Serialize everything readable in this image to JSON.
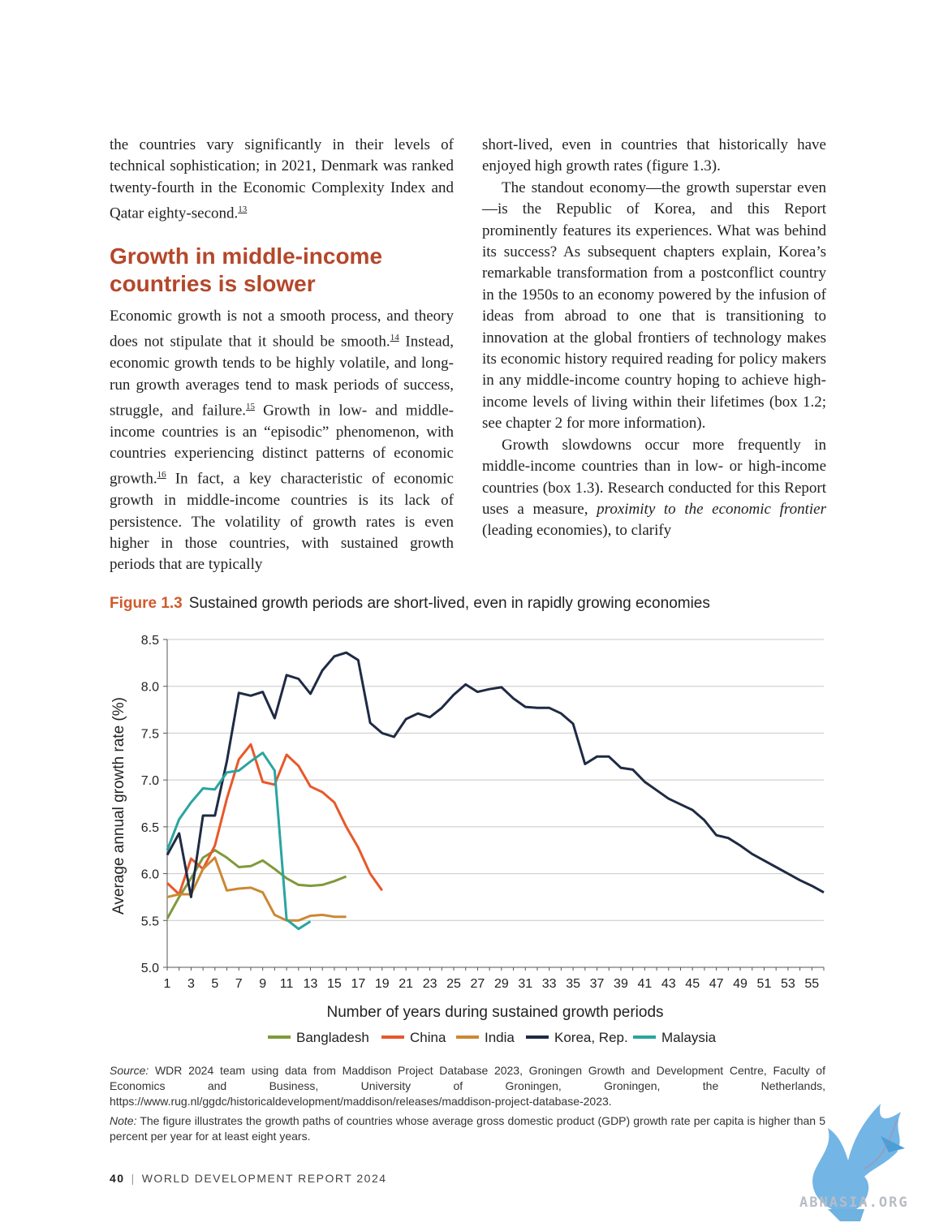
{
  "left_column": {
    "p1": "the countries vary significantly in their levels of technical sophistication; in 2021, Denmark was ranked twenty-fourth in the Economic Complexity Index and Qatar eighty-second.",
    "p1_note": "13",
    "heading": "Growth in middle-income countries is slower",
    "p2_a": "Economic growth is not a smooth process, and theory does not stipulate that it should be smooth.",
    "p2_n1": "14",
    "p2_b": " Instead, economic growth tends to be highly volatile, and long-run growth averages tend to mask periods of success, struggle, and failure.",
    "p2_n2": "15",
    "p2_c": " Growth in low- and middle-income countries is an “episodic” phenomenon, with countries experiencing distinct patterns of economic growth.",
    "p2_n3": "16",
    "p2_d": " In fact, a key characteristic of economic growth in middle-income countries is its lack of persistence. The volatility of growth rates is even higher in those countries, with sustained growth periods that are typically"
  },
  "right_column": {
    "p1": "short-lived, even in countries that historically have enjoyed high growth rates (figure 1.3).",
    "p2": "The standout economy—the growth superstar even—is the Republic of Korea, and this Report prominently features its experiences. What was behind its success? As subsequent chapters explain, Korea’s remarkable transformation from a postconflict country in the 1950s to an economy powered by the infusion of ideas from abroad to one that is transitioning to innovation at the global frontiers of technology makes its economic history required reading for policy makers in any middle-income country hoping to achieve high-income levels of living within their lifetimes (box 1.2; see chapter 2 for more information).",
    "p3_a": "Growth slowdowns occur more frequently in middle-income countries than in low- or high-income countries (box 1.3). Research conducted for this Report uses a measure, ",
    "p3_em": "proximity to the economic frontier",
    "p3_b": " (leading economies), to clarify"
  },
  "figure": {
    "number": "Figure 1.3",
    "title": "Sustained growth periods are short-lived, even in rapidly growing economies"
  },
  "chart_data": {
    "type": "line",
    "xlabel": "Number of years during sustained growth periods",
    "ylabel": "Average annual growth rate (%)",
    "xlim": [
      1,
      56
    ],
    "ylim": [
      5.0,
      8.5
    ],
    "x_ticks": [
      "1",
      "3",
      "5",
      "7",
      "9",
      "11",
      "13",
      "15",
      "17",
      "19",
      "21",
      "23",
      "25",
      "27",
      "29",
      "31",
      "33",
      "35",
      "37",
      "39",
      "41",
      "43",
      "45",
      "47",
      "49",
      "51",
      "53",
      "55"
    ],
    "y_ticks": [
      "5.0",
      "5.5",
      "6.0",
      "6.5",
      "7.0",
      "7.5",
      "8.0",
      "8.5"
    ],
    "grid": "horizontal",
    "legend_position": "bottom",
    "series": [
      {
        "name": "Bangladesh",
        "color": "#7f9a3a",
        "values": [
          5.52,
          5.75,
          5.95,
          6.17,
          6.25,
          6.17,
          6.07,
          6.08,
          6.14,
          6.05,
          5.95,
          5.88,
          5.87,
          5.88,
          5.92,
          5.97
        ]
      },
      {
        "name": "China",
        "color": "#e8582a",
        "values": [
          5.9,
          5.78,
          6.16,
          6.05,
          6.3,
          6.8,
          7.22,
          7.38,
          6.98,
          6.95,
          7.27,
          7.15,
          6.93,
          6.87,
          6.76,
          6.5,
          6.28,
          6.0,
          5.82
        ]
      },
      {
        "name": "India",
        "color": "#cc8833",
        "values": [
          5.75,
          5.78,
          5.78,
          6.05,
          6.17,
          5.82,
          5.84,
          5.85,
          5.8,
          5.56,
          5.5,
          5.5,
          5.55,
          5.56,
          5.54,
          5.54
        ]
      },
      {
        "name": "Korea, Rep.",
        "color": "#1f2a44",
        "values": [
          6.2,
          6.43,
          5.75,
          6.62,
          6.62,
          7.2,
          7.93,
          7.9,
          7.94,
          7.66,
          8.12,
          8.08,
          7.92,
          8.17,
          8.32,
          8.36,
          8.28,
          7.61,
          7.5,
          7.46,
          7.65,
          7.71,
          7.67,
          7.77,
          7.91,
          8.02,
          7.94,
          7.97,
          7.99,
          7.87,
          7.78,
          7.77,
          7.77,
          7.71,
          7.6,
          7.17,
          7.25,
          7.25,
          7.13,
          7.11,
          6.98,
          6.89,
          6.8,
          6.74,
          6.68,
          6.57,
          6.41,
          6.38,
          6.3,
          6.21,
          6.14,
          6.07,
          6.0,
          5.93,
          5.87,
          5.8
        ]
      },
      {
        "name": "Malaysia",
        "color": "#2aa59f",
        "values": [
          6.25,
          6.58,
          6.76,
          6.91,
          6.9,
          7.08,
          7.1,
          7.2,
          7.29,
          7.1,
          5.51,
          5.41,
          5.49
        ]
      }
    ]
  },
  "notes": {
    "source_label": "Source:",
    "source_text": " WDR 2024 team using data from Maddison Project Database 2023, Groningen Growth and Development Centre, Faculty of Economics and Business, University of Groningen, Groningen, the Netherlands, https://www.rug.nl/ggdc/historicaldevelopment/maddison/releases/maddison-project-database-2023.",
    "note_label": "Note:",
    "note_text": " The figure illustrates the growth paths of countries whose average gross domestic product (GDP) growth rate per capita is higher than 5 percent per year for at least eight years."
  },
  "footer": {
    "page": "40",
    "separator": "|",
    "title": "WORLD DEVELOPMENT REPORT 2024"
  },
  "watermark": {
    "text": "ABNASIA.ORG",
    "icon": "griffin-logo-icon",
    "color": "#4a9fd8"
  }
}
